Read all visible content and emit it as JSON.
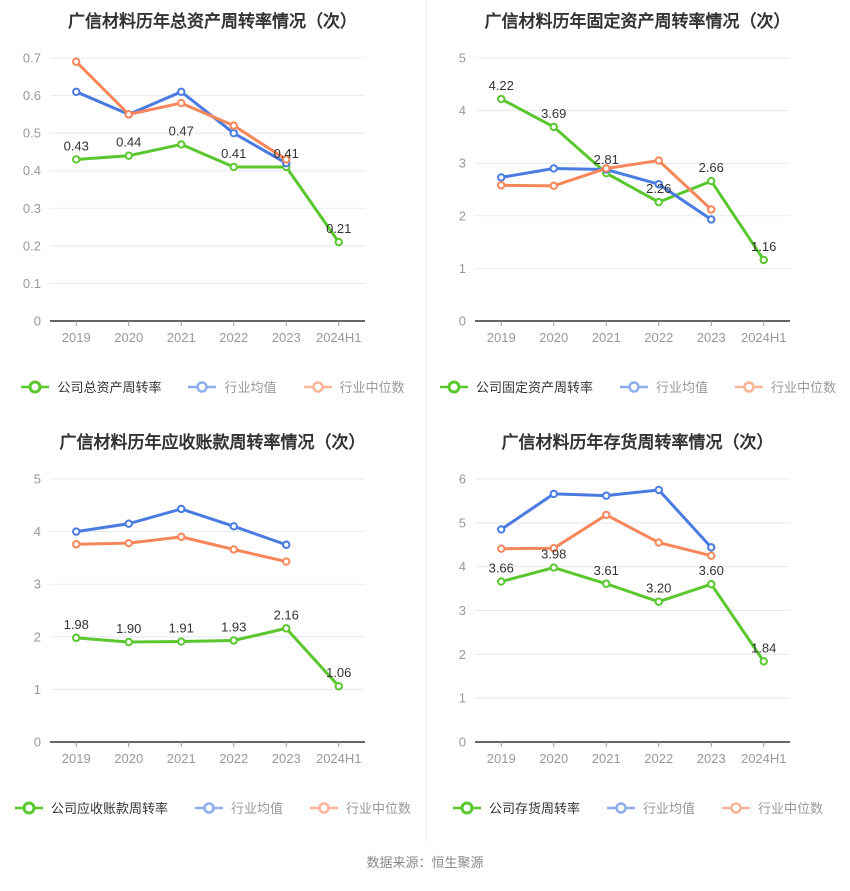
{
  "colors": {
    "company": "#5BC72F",
    "industry_avg": "#4A7BE1",
    "industry_median": "#F7875A",
    "grid_line": "#E3E8F3",
    "axis_line": "#333333",
    "tick_label": "#999999",
    "data_label": "#333333",
    "title_text": "#333333",
    "footer_text": "#888888",
    "panel_divider": "#EDEDED"
  },
  "footer": {
    "source_text": "数据来源：恒生聚源"
  },
  "chart_data": [
    {
      "type": "line",
      "title": "广信材料历年总资产周转率情况（次）",
      "categories": [
        "2019",
        "2020",
        "2021",
        "2022",
        "2023",
        "2024H1"
      ],
      "ylim": [
        0,
        0.7
      ],
      "ytick_step": 0.1,
      "grid": true,
      "legend_position": "bottom",
      "series": [
        {
          "name": "公司总资产周转率",
          "role": "company",
          "show_labels": true,
          "values": [
            0.43,
            0.44,
            0.47,
            0.41,
            0.41,
            0.21
          ]
        },
        {
          "name": "行业均值",
          "role": "industry_avg",
          "show_labels": false,
          "values": [
            0.61,
            0.55,
            0.61,
            0.5,
            0.42,
            null
          ]
        },
        {
          "name": "行业中位数",
          "role": "industry_median",
          "show_labels": false,
          "values": [
            0.69,
            0.55,
            0.58,
            0.52,
            0.43,
            null
          ]
        }
      ]
    },
    {
      "type": "line",
      "title": "广信材料历年固定资产周转率情况（次）",
      "categories": [
        "2019",
        "2020",
        "2021",
        "2022",
        "2023",
        "2024H1"
      ],
      "ylim": [
        0,
        5
      ],
      "ytick_step": 1,
      "grid": true,
      "legend_position": "bottom",
      "series": [
        {
          "name": "公司固定资产周转率",
          "role": "company",
          "show_labels": true,
          "values": [
            4.22,
            3.69,
            2.81,
            2.26,
            2.66,
            1.16
          ]
        },
        {
          "name": "行业均值",
          "role": "industry_avg",
          "show_labels": false,
          "values": [
            2.73,
            2.9,
            2.88,
            2.6,
            1.93,
            null
          ]
        },
        {
          "name": "行业中位数",
          "role": "industry_median",
          "show_labels": false,
          "values": [
            2.58,
            2.57,
            2.9,
            3.05,
            2.12,
            null
          ]
        }
      ]
    },
    {
      "type": "line",
      "title": "广信材料历年应收账款周转率情况（次）",
      "categories": [
        "2019",
        "2020",
        "2021",
        "2022",
        "2023",
        "2024H1"
      ],
      "ylim": [
        0,
        5
      ],
      "ytick_step": 1,
      "grid": true,
      "legend_position": "bottom",
      "series": [
        {
          "name": "公司应收账款周转率",
          "role": "company",
          "show_labels": true,
          "values": [
            1.98,
            1.9,
            1.91,
            1.93,
            2.16,
            1.06
          ]
        },
        {
          "name": "行业均值",
          "role": "industry_avg",
          "show_labels": false,
          "values": [
            4.0,
            4.15,
            4.43,
            4.1,
            3.75,
            null
          ]
        },
        {
          "name": "行业中位数",
          "role": "industry_median",
          "show_labels": false,
          "values": [
            3.76,
            3.78,
            3.9,
            3.66,
            3.43,
            null
          ]
        }
      ]
    },
    {
      "type": "line",
      "title": "广信材料历年存货周转率情况（次）",
      "categories": [
        "2019",
        "2020",
        "2021",
        "2022",
        "2023",
        "2024H1"
      ],
      "ylim": [
        0,
        6
      ],
      "ytick_step": 1,
      "grid": true,
      "legend_position": "bottom",
      "series": [
        {
          "name": "公司存货周转率",
          "role": "company",
          "show_labels": true,
          "values": [
            3.66,
            3.98,
            3.61,
            3.2,
            3.6,
            1.84
          ]
        },
        {
          "name": "行业均值",
          "role": "industry_avg",
          "show_labels": false,
          "values": [
            4.85,
            5.66,
            5.62,
            5.75,
            4.44,
            null
          ]
        },
        {
          "name": "行业中位数",
          "role": "industry_median",
          "show_labels": false,
          "values": [
            4.41,
            4.42,
            5.18,
            4.55,
            4.25,
            null
          ]
        }
      ]
    }
  ]
}
